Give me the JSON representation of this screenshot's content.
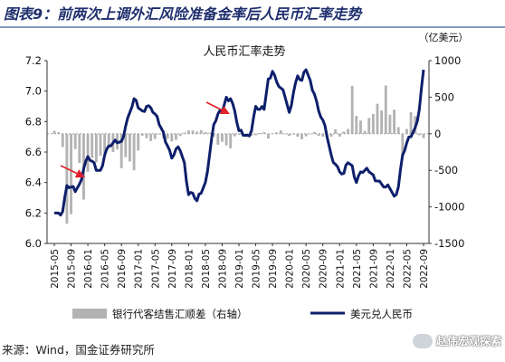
{
  "figure_title": "图表9：前两次上调外汇风险准备金率后人民币汇率走势",
  "source": "来源：Wind，国金证券研究所",
  "watermark": "赵伟宏观探索",
  "colors": {
    "line": "#0d1f6b",
    "bar": "#b3b3b3",
    "arrow": "#e0202a",
    "title": "#1f2f6e"
  },
  "chart_data": {
    "type": "bar+line",
    "title": "人民币汇率走势",
    "left_axis": {
      "ylim": [
        6.0,
        7.2
      ],
      "ticks": [
        "7.2",
        "7.0",
        "6.8",
        "6.6",
        "6.4",
        "6.2",
        "6.0"
      ]
    },
    "right_axis": {
      "label": "（亿美元）",
      "ylim": [
        -1500,
        1000
      ],
      "ticks": [
        "1000",
        "500",
        "0",
        "-500",
        "-1000",
        "-1500"
      ]
    },
    "x_tick_labels": [
      "2015-05",
      "2015-09",
      "2016-01",
      "2016-05",
      "2016-09",
      "2017-01",
      "2017-05",
      "2017-09",
      "2018-01",
      "2018-05",
      "2018-09",
      "2019-01",
      "2019-05",
      "2019-09",
      "2020-01",
      "2020-05",
      "2020-09",
      "2021-01",
      "2021-05",
      "2021-09",
      "2022-01",
      "2022-05",
      "2022-09"
    ],
    "legend": [
      "银行代客结售汇顺差（右轴）",
      "美元兑人民币"
    ],
    "legend_position": "bottom",
    "grid": false,
    "annotations": [
      {
        "type": "arrow",
        "label": "上调外汇风险准备金率",
        "date": "2015-10"
      },
      {
        "type": "arrow",
        "label": "上调外汇风险准备金率",
        "date": "2018-08"
      }
    ],
    "series": [
      {
        "name": "银行代客结售汇顺差（右轴）",
        "type": "bar",
        "axis": "right",
        "x": [
          "2015-05",
          "2015-06",
          "2015-07",
          "2015-08",
          "2015-09",
          "2015-10",
          "2015-11",
          "2015-12",
          "2016-01",
          "2016-02",
          "2016-03",
          "2016-04",
          "2016-05",
          "2016-06",
          "2016-07",
          "2016-08",
          "2016-09",
          "2016-10",
          "2016-11",
          "2016-12",
          "2017-01",
          "2017-02",
          "2017-03",
          "2017-04",
          "2017-05",
          "2017-06",
          "2017-07",
          "2017-08",
          "2017-09",
          "2017-10",
          "2017-11",
          "2017-12",
          "2018-01",
          "2018-02",
          "2018-03",
          "2018-04",
          "2018-05",
          "2018-06",
          "2018-07",
          "2018-08",
          "2018-09",
          "2018-10",
          "2018-11",
          "2018-12",
          "2019-01",
          "2019-02",
          "2019-03",
          "2019-04",
          "2019-05",
          "2019-06",
          "2019-07",
          "2019-08",
          "2019-09",
          "2019-10",
          "2019-11",
          "2019-12",
          "2020-01",
          "2020-02",
          "2020-03",
          "2020-04",
          "2020-05",
          "2020-06",
          "2020-07",
          "2020-08",
          "2020-09",
          "2020-10",
          "2020-11",
          "2020-12",
          "2021-01",
          "2021-02",
          "2021-03",
          "2021-04",
          "2021-05",
          "2021-06",
          "2021-07",
          "2021-08",
          "2021-09",
          "2021-10",
          "2021-11",
          "2021-12",
          "2022-01",
          "2022-02",
          "2022-03",
          "2022-04",
          "2022-05",
          "2022-06",
          "2022-07",
          "2022-08",
          "2022-09"
        ],
        "values": [
          40,
          20,
          -180,
          -1230,
          -1100,
          -210,
          -400,
          -900,
          -520,
          -330,
          -390,
          -300,
          -270,
          -190,
          -250,
          -215,
          -470,
          -320,
          -380,
          -500,
          -230,
          -25,
          -60,
          -100,
          -70,
          -10,
          -65,
          -65,
          -105,
          -82,
          -30,
          15,
          45,
          45,
          30,
          50,
          25,
          15,
          -40,
          -150,
          -110,
          -160,
          -200,
          -35,
          -15,
          -20,
          -28,
          -30,
          -20,
          10,
          20,
          -65,
          5,
          20,
          45,
          -5,
          -28,
          -12,
          -40,
          -75,
          -35,
          -5,
          25,
          -30,
          -40,
          -50,
          -40,
          60,
          -40,
          30,
          65,
          655,
          245,
          180,
          40,
          215,
          270,
          410,
          320,
          660,
          260,
          330,
          90,
          -300,
          65,
          295,
          240,
          -20,
          -60
        ]
      },
      {
        "name": "美元兑人民币",
        "type": "line",
        "axis": "left",
        "x": [
          "2015-05",
          "2015-06",
          "2015-07",
          "2015-08",
          "2015-09",
          "2015-10",
          "2015-11",
          "2015-12",
          "2016-01",
          "2016-02",
          "2016-03",
          "2016-04",
          "2016-05",
          "2016-06",
          "2016-07",
          "2016-08",
          "2016-09",
          "2016-10",
          "2016-11",
          "2016-12",
          "2017-01",
          "2017-02",
          "2017-03",
          "2017-04",
          "2017-05",
          "2017-06",
          "2017-07",
          "2017-08",
          "2017-09",
          "2017-10",
          "2017-11",
          "2017-12",
          "2018-01",
          "2018-02",
          "2018-03",
          "2018-04",
          "2018-05",
          "2018-06",
          "2018-07",
          "2018-08",
          "2018-09",
          "2018-10",
          "2018-11",
          "2018-12",
          "2019-01",
          "2019-02",
          "2019-03",
          "2019-04",
          "2019-05",
          "2019-06",
          "2019-07",
          "2019-08",
          "2019-09",
          "2019-10",
          "2019-11",
          "2019-12",
          "2020-01",
          "2020-02",
          "2020-03",
          "2020-04",
          "2020-05",
          "2020-06",
          "2020-07",
          "2020-08",
          "2020-09",
          "2020-10",
          "2020-11",
          "2020-12",
          "2021-01",
          "2021-02",
          "2021-03",
          "2021-04",
          "2021-05",
          "2021-06",
          "2021-07",
          "2021-08",
          "2021-09",
          "2021-10",
          "2021-11",
          "2021-12",
          "2022-01",
          "2022-02",
          "2022-03",
          "2022-04",
          "2022-05",
          "2022-06",
          "2022-07",
          "2022-08",
          "2022-09"
        ],
        "values": [
          6.2,
          6.2,
          6.21,
          6.38,
          6.37,
          6.34,
          6.39,
          6.49,
          6.57,
          6.54,
          6.48,
          6.48,
          6.58,
          6.64,
          6.66,
          6.66,
          6.67,
          6.77,
          6.86,
          6.95,
          6.89,
          6.87,
          6.9,
          6.89,
          6.85,
          6.78,
          6.73,
          6.64,
          6.56,
          6.62,
          6.61,
          6.53,
          6.32,
          6.33,
          6.28,
          6.33,
          6.4,
          6.58,
          6.78,
          6.85,
          6.86,
          6.96,
          6.95,
          6.87,
          6.74,
          6.71,
          6.71,
          6.74,
          6.9,
          6.88,
          6.88,
          7.08,
          7.13,
          7.06,
          7.02,
          6.96,
          6.86,
          6.99,
          7.1,
          7.07,
          7.14,
          7.07,
          6.98,
          6.87,
          6.81,
          6.7,
          6.58,
          6.52,
          6.47,
          6.46,
          6.53,
          6.51,
          6.4,
          6.47,
          6.48,
          6.47,
          6.45,
          6.41,
          6.39,
          6.37,
          6.36,
          6.31,
          6.37,
          6.58,
          6.66,
          6.7,
          6.76,
          6.88,
          7.14
        ]
      }
    ]
  }
}
